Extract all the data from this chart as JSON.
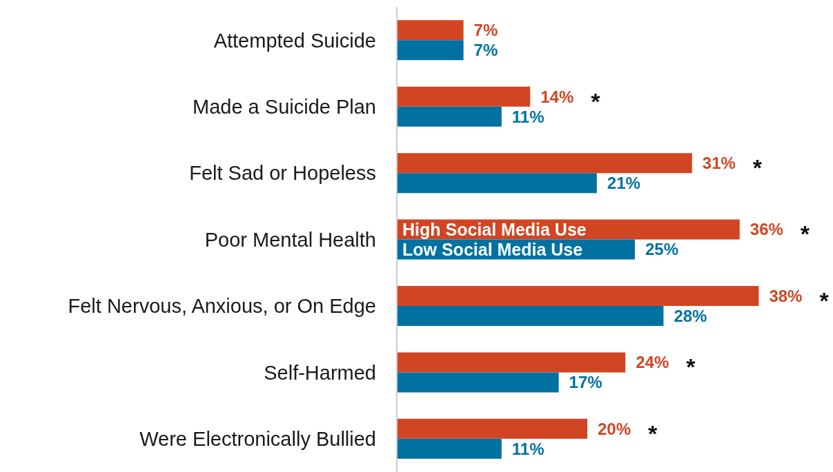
{
  "chart_data": {
    "type": "bar",
    "orientation": "horizontal",
    "categories": [
      "Attempted Suicide",
      "Made a Suicide Plan",
      "Felt Sad or Hopeless",
      "Poor Mental Health",
      "Felt Nervous, Anxious, or On Edge",
      "Self-Harmed",
      "Were Electronically Bullied"
    ],
    "series": [
      {
        "name": "High Social Media Use",
        "color": "#d24523",
        "values": [
          7,
          14,
          31,
          36,
          38,
          24,
          20
        ],
        "value_labels": [
          "7%",
          "14%",
          "31%",
          "36%",
          "38%",
          "24%",
          "20%"
        ]
      },
      {
        "name": "Low Social Media Use",
        "color": "#0071a1",
        "values": [
          7,
          11,
          21,
          25,
          28,
          17,
          11
        ],
        "value_labels": [
          "7%",
          "11%",
          "21%",
          "25%",
          "28%",
          "17%",
          "11%"
        ]
      }
    ],
    "tick_labels": "y",
    "annotations": [
      "*",
      "*",
      "*",
      "*",
      "*",
      "*"
    ]
  }
}
